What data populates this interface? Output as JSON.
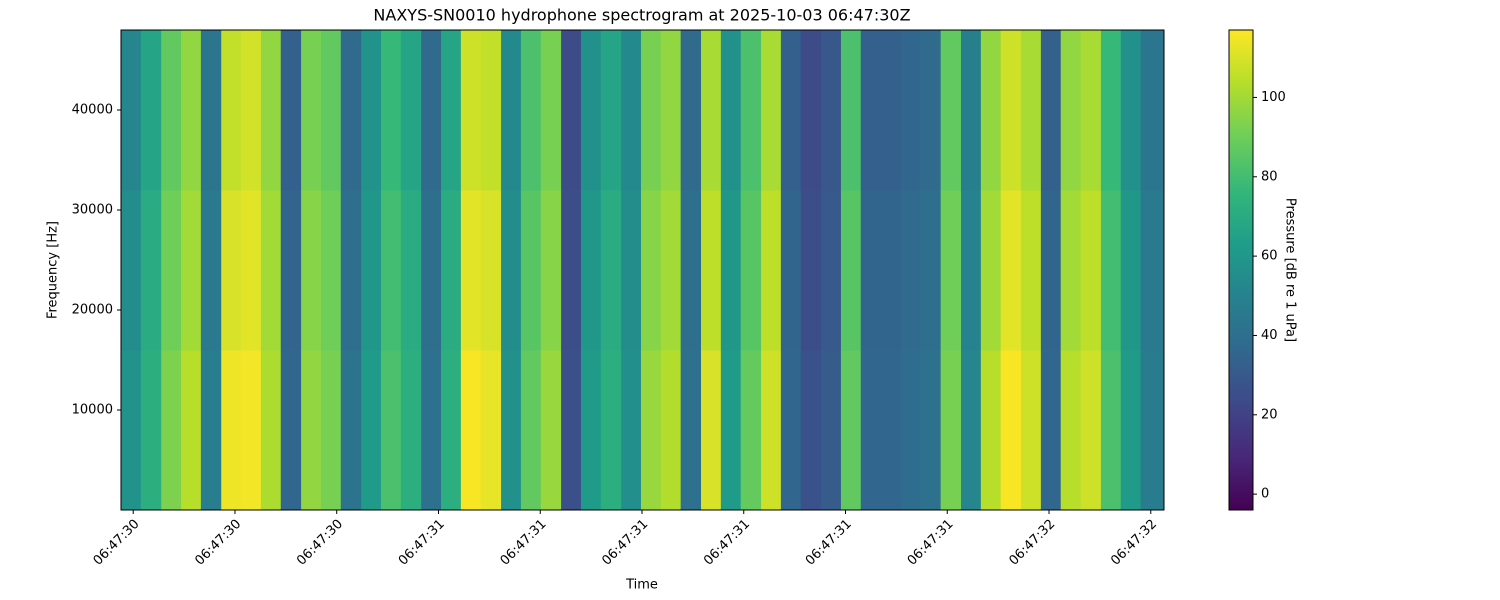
{
  "chart_data": {
    "type": "heatmap",
    "title": "NAXYS-SN0010 hydrophone spectrogram at 2025-10-03 06:47:30Z",
    "xlabel": "Time",
    "ylabel": "Frequency [Hz]",
    "colorbar_label": "Pressure [dB re 1 uPa]",
    "colormap": "viridis",
    "x": [
      -0.024,
      0.015,
      0.055,
      0.094,
      0.133,
      0.173,
      0.212,
      0.251,
      0.29,
      0.33,
      0.369,
      0.408,
      0.448,
      0.487,
      0.526,
      0.566,
      0.605,
      0.644,
      0.683,
      0.723,
      0.762,
      0.801,
      0.841,
      0.88,
      0.919,
      0.959,
      0.998,
      1.037,
      1.076,
      1.116,
      1.155,
      1.194,
      1.234,
      1.273,
      1.312,
      1.352,
      1.391,
      1.43,
      1.469,
      1.509,
      1.548,
      1.587,
      1.627,
      1.666,
      1.705,
      1.745,
      1.784,
      1.823,
      1.862,
      1.902,
      1.941,
      1.98
    ],
    "y": [
      0,
      16000,
      32000
    ],
    "z": [
      [
        58,
        72,
        93,
        104,
        47,
        114,
        115,
        102,
        36,
        97,
        92,
        42,
        62,
        82,
        72,
        41,
        72,
        116,
        113,
        57,
        87,
        98,
        26,
        62,
        72,
        56,
        98,
        103,
        41,
        110,
        62,
        88,
        108,
        36,
        27,
        31,
        87,
        36,
        36,
        39,
        41,
        92,
        52,
        104,
        116,
        108,
        36,
        104,
        108,
        82,
        62,
        46
      ],
      [
        55,
        70,
        90,
        100,
        45,
        110,
        112,
        100,
        35,
        95,
        90,
        40,
        60,
        80,
        70,
        40,
        70,
        112,
        110,
        55,
        85,
        95,
        25,
        60,
        70,
        55,
        95,
        100,
        40,
        105,
        60,
        85,
        105,
        35,
        25,
        30,
        85,
        35,
        35,
        38,
        40,
        90,
        50,
        100,
        112,
        105,
        35,
        100,
        105,
        80,
        60,
        45
      ],
      [
        52,
        67,
        87,
        97,
        43,
        106,
        109,
        97,
        33,
        92,
        87,
        38,
        58,
        77,
        67,
        38,
        67,
        108,
        106,
        53,
        82,
        92,
        24,
        57,
        67,
        53,
        92,
        97,
        38,
        101,
        57,
        82,
        101,
        33,
        24,
        29,
        82,
        33,
        33,
        36,
        38,
        87,
        48,
        97,
        108,
        101,
        33,
        97,
        101,
        77,
        57,
        43
      ]
    ],
    "xlim": [
      -0.024,
      2.026
    ],
    "ylim": [
      0,
      48000
    ],
    "clim": [
      -4,
      117
    ],
    "xticks": [
      {
        "value": 0.0,
        "label": "06:47:30"
      },
      {
        "value": 0.2,
        "label": "06:47:30"
      },
      {
        "value": 0.4,
        "label": "06:47:30"
      },
      {
        "value": 0.6,
        "label": "06:47:31"
      },
      {
        "value": 0.8,
        "label": "06:47:31"
      },
      {
        "value": 1.0,
        "label": "06:47:31"
      },
      {
        "value": 1.2,
        "label": "06:47:31"
      },
      {
        "value": 1.4,
        "label": "06:47:31"
      },
      {
        "value": 1.6,
        "label": "06:47:31"
      },
      {
        "value": 1.8,
        "label": "06:47:32"
      },
      {
        "value": 2.0,
        "label": "06:47:32"
      }
    ],
    "yticks": [
      10000,
      20000,
      30000,
      40000
    ],
    "cticks": [
      0,
      20,
      40,
      60,
      80,
      100
    ]
  }
}
